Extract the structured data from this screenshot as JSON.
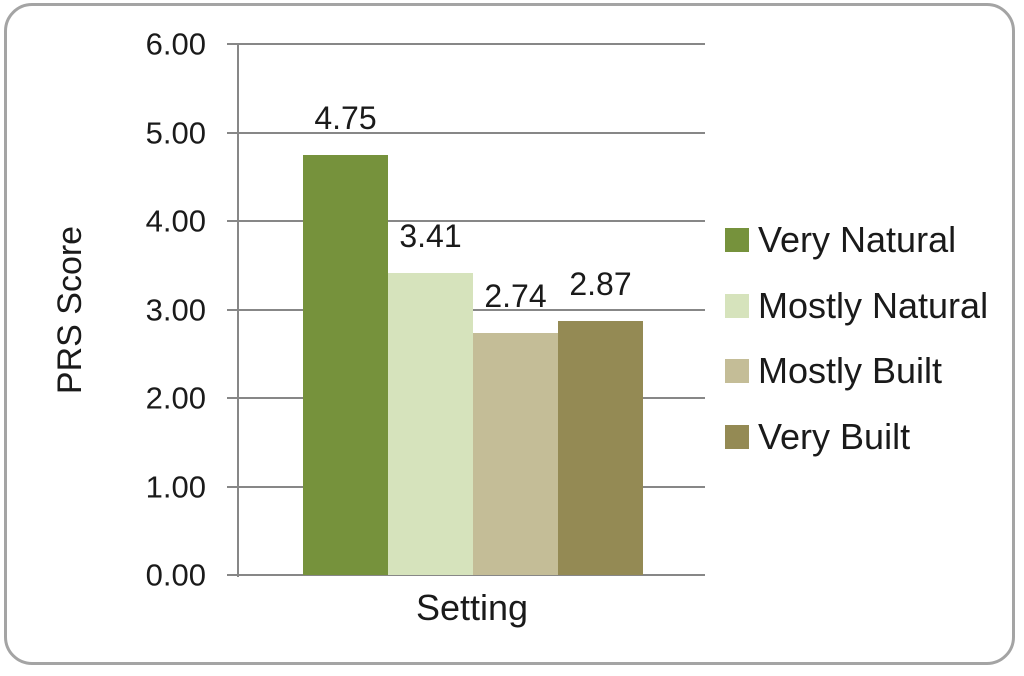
{
  "chart_data": {
    "type": "bar",
    "title": "",
    "xlabel": "Setting",
    "ylabel": "PRS Score",
    "categories": [
      "Setting"
    ],
    "series": [
      {
        "name": "Very Natural",
        "value": 4.75,
        "label": "4.75",
        "color": "#76923C"
      },
      {
        "name": "Mostly Natural",
        "value": 3.41,
        "label": "3.41",
        "color": "#D6E3BC"
      },
      {
        "name": "Mostly Built",
        "value": 2.74,
        "label": "2.74",
        "color": "#C4BD97"
      },
      {
        "name": "Very Built",
        "value": 2.87,
        "label": "2.87",
        "color": "#948A54"
      }
    ],
    "ylim": [
      0,
      6
    ],
    "ytick_step": 1,
    "ytick_labels": [
      "0.00",
      "1.00",
      "2.00",
      "3.00",
      "4.00",
      "5.00",
      "6.00"
    ],
    "grid": "horizontal",
    "legend_position": "right",
    "colors": {
      "gridline": "#878787",
      "axis": "#878787",
      "frame_border": "#A4A4A4",
      "text": "#1A1A1A",
      "background": "#FFFFFF"
    }
  }
}
